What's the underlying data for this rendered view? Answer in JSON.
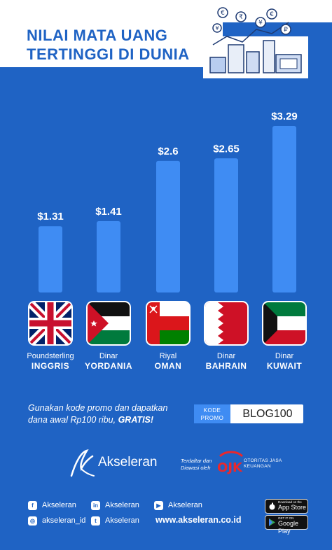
{
  "title": {
    "line1": "NILAI MATA UANG",
    "line2": "TERTINGGI DI DUNIA"
  },
  "chart_data": {
    "type": "bar",
    "categories": [
      "Poundsterling INGGRIS",
      "Dinar YORDANIA",
      "Riyal OMAN",
      "Dinar BAHRAIN",
      "Dinar KUWAIT"
    ],
    "currency_names": [
      "Poundsterling",
      "Dinar",
      "Riyal",
      "Dinar",
      "Dinar"
    ],
    "country_names": [
      "INGGRIS",
      "YORDANIA",
      "OMAN",
      "BAHRAIN",
      "KUWAIT"
    ],
    "values": [
      1.31,
      1.41,
      2.6,
      2.65,
      3.29
    ],
    "value_labels": [
      "$1.31",
      "$1.41",
      "$2.6",
      "$2.65",
      "$3.29"
    ],
    "flags": [
      "uk-flag",
      "jordan-flag",
      "oman-flag",
      "bahrain-flag",
      "kuwait-flag"
    ],
    "ylim": [
      0,
      3.29
    ],
    "grid": false,
    "bar_color": "#3f8cf3",
    "background_color": "#1f63c4"
  },
  "promo": {
    "text_main": "Gunakan kode promo dan dapatkan dana awal Rp100 ribu,",
    "text_bold": "GRATIS!",
    "label": "KODE PROMO",
    "code": "BLOG100"
  },
  "brand": {
    "name": "Akseleran",
    "registered": "Terdaftar dan Diawasi oleh",
    "ojk_text": "OTORITAS JASA KEUANGAN"
  },
  "social": {
    "facebook": "Akseleran",
    "linkedin": "Akseleran",
    "youtube": "Akseleran",
    "instagram": "akseleran_id",
    "twitter": "Akseleran"
  },
  "website": "www.akseleran.co.id",
  "stores": {
    "apple_small": "Download on the",
    "apple_big": "App Store",
    "google_small": "GET IT ON",
    "google_big": "Google Play"
  }
}
